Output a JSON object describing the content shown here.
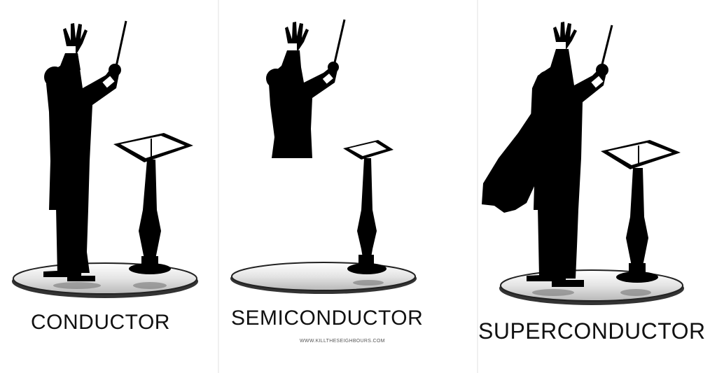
{
  "panels": [
    {
      "id": "conductor",
      "caption": "CONDUCTOR"
    },
    {
      "id": "semiconductor",
      "caption": "SEMICONDUCTOR"
    },
    {
      "id": "superconductor",
      "caption": "SUPERCONDUCTOR"
    }
  ],
  "watermark": "WWW.KILLTHESEIGHBOURS.COM",
  "colors": {
    "background": "#ffffff",
    "silhouette": "#000000",
    "disc": "#d8d8d8"
  }
}
